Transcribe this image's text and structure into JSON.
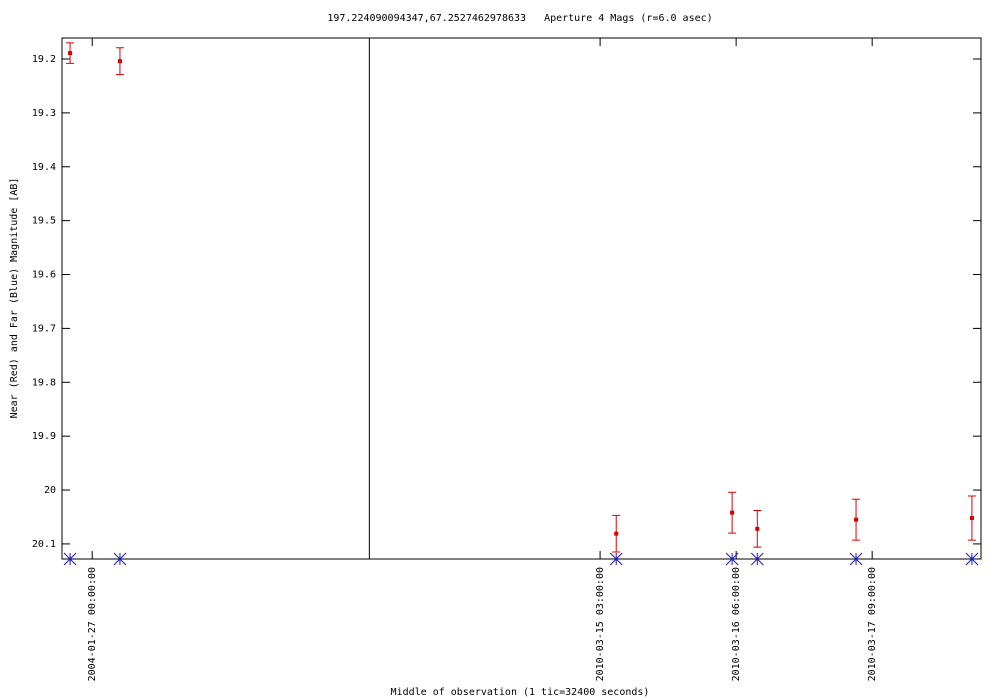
{
  "chart_data": {
    "type": "errorbar",
    "title": "197.224090094347,67.2527462978633   Aperture 4 Mags (r=6.0 asec)",
    "x_label": "Middle of observation (1 tic=32400 seconds)",
    "y_label": "Near (Red) and Far (Blue) Magnitude [AB]",
    "x_segments": [
      {
        "xlim": [
          "2004-01-26 18:00:00",
          "2004-01-29 07:00:00"
        ],
        "xticks": [
          "2004-01-27 00:00:00"
        ]
      },
      {
        "xlim": [
          "2010-03-13 05:12:00",
          "2010-03-18 06:36:00"
        ],
        "xticks": [
          "2010-03-15 03:00:00",
          "2010-03-16 06:00:00",
          "2010-03-17 09:00:00"
        ]
      }
    ],
    "ylim": [
      19.161,
      20.128
    ],
    "y_inverted": true,
    "yticks": [
      19.2,
      19.3,
      19.4,
      19.5,
      19.6,
      19.7,
      19.8,
      19.9,
      20,
      20.1
    ],
    "x": [
      "2004-01-26 19:36:00",
      "2004-01-27 05:30:00",
      "2010-03-15 06:12:00",
      "2010-03-16 05:12:00",
      "2010-03-16 10:12:00",
      "2010-03-17 05:48:00",
      "2010-03-18 04:48:00"
    ],
    "series": [
      {
        "name": "Near",
        "color": "#dd0000",
        "marker": "errorbar",
        "values": [
          19.189,
          19.204,
          20.081,
          20.042,
          20.072,
          20.055,
          20.052
        ],
        "errors": [
          0.019,
          0.025,
          0.034,
          0.038,
          0.034,
          0.038,
          0.041
        ]
      },
      {
        "name": "Far",
        "color": "#1a1acc",
        "marker": "star",
        "values": [
          20.128,
          20.128,
          20.128,
          20.128,
          20.128,
          20.128,
          20.128
        ]
      }
    ]
  }
}
